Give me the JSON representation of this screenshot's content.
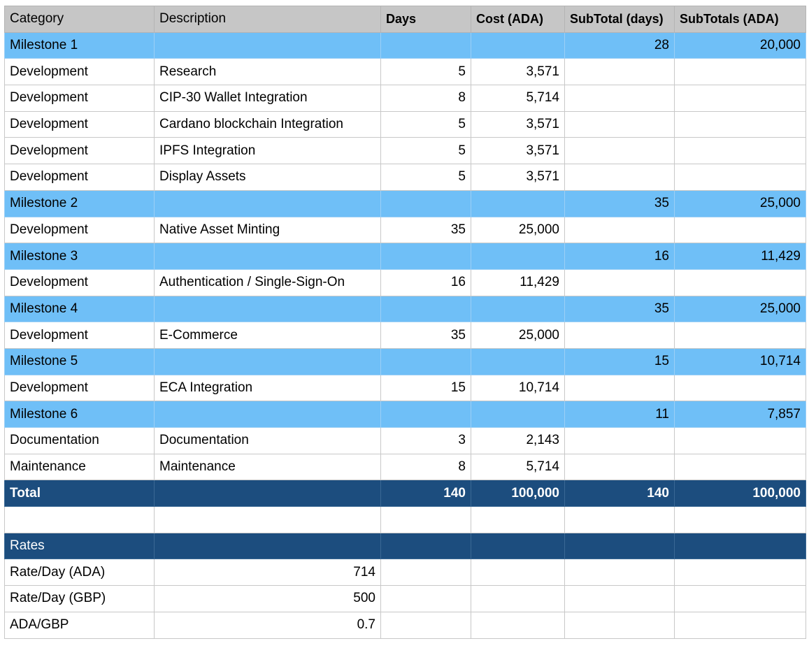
{
  "colors": {
    "header_bg": "#c6c6c6",
    "milestone_bg": "#6fbff7",
    "total_bg": "#1c4d7e",
    "grid": "#c8c8c8"
  },
  "headers": [
    "Category",
    "Description",
    "Days",
    "Cost (ADA)",
    "SubTotal (days)",
    "SubTotals (ADA)"
  ],
  "rows": [
    {
      "type": "milestone",
      "cells": [
        "Milestone 1",
        "",
        "",
        "",
        "28",
        "20,000"
      ]
    },
    {
      "type": "item",
      "cells": [
        "Development",
        "Research",
        "5",
        "3,571",
        "",
        ""
      ]
    },
    {
      "type": "item",
      "cells": [
        "Development",
        "CIP-30 Wallet Integration",
        "8",
        "5,714",
        "",
        ""
      ]
    },
    {
      "type": "item",
      "cells": [
        "Development",
        "Cardano blockchain Integration",
        "5",
        "3,571",
        "",
        ""
      ]
    },
    {
      "type": "item",
      "cells": [
        "Development",
        "IPFS Integration",
        "5",
        "3,571",
        "",
        ""
      ]
    },
    {
      "type": "item",
      "cells": [
        "Development",
        "Display Assets",
        "5",
        "3,571",
        "",
        ""
      ]
    },
    {
      "type": "milestone",
      "cells": [
        "Milestone 2",
        "",
        "",
        "",
        "35",
        "25,000"
      ]
    },
    {
      "type": "item",
      "cells": [
        "Development",
        "Native Asset Minting",
        "35",
        "25,000",
        "",
        ""
      ]
    },
    {
      "type": "milestone",
      "cells": [
        "Milestone 3",
        "",
        "",
        "",
        "16",
        "11,429"
      ]
    },
    {
      "type": "item",
      "cells": [
        "Development",
        "Authentication / Single-Sign-On",
        "16",
        "11,429",
        "",
        ""
      ]
    },
    {
      "type": "milestone",
      "cells": [
        "Milestone 4",
        "",
        "",
        "",
        "35",
        "25,000"
      ]
    },
    {
      "type": "item",
      "cells": [
        "Development",
        "E-Commerce",
        "35",
        "25,000",
        "",
        ""
      ]
    },
    {
      "type": "milestone",
      "cells": [
        "Milestone 5",
        "",
        "",
        "",
        "15",
        "10,714"
      ]
    },
    {
      "type": "item",
      "cells": [
        "Development",
        "ECA Integration",
        "15",
        "10,714",
        "",
        ""
      ]
    },
    {
      "type": "milestone",
      "cells": [
        "Milestone 6",
        "",
        "",
        "",
        "11",
        "7,857"
      ]
    },
    {
      "type": "item",
      "cells": [
        "Documentation",
        "Documentation",
        "3",
        "2,143",
        "",
        ""
      ]
    },
    {
      "type": "item",
      "cells": [
        "Maintenance",
        "Maintenance",
        "8",
        "5,714",
        "",
        ""
      ]
    },
    {
      "type": "total",
      "cells": [
        "Total",
        "",
        "140",
        "100,000",
        "140",
        "100,000"
      ]
    },
    {
      "type": "blank",
      "cells": [
        "",
        "",
        "",
        "",
        "",
        ""
      ]
    },
    {
      "type": "rates",
      "cells": [
        "Rates",
        "",
        "",
        "",
        "",
        ""
      ]
    },
    {
      "type": "rate",
      "cells": [
        "Rate/Day (ADA)",
        "714",
        "",
        "",
        "",
        ""
      ]
    },
    {
      "type": "rate",
      "cells": [
        "Rate/Day (GBP)",
        "500",
        "",
        "",
        "",
        ""
      ]
    },
    {
      "type": "rate",
      "cells": [
        "ADA/GBP",
        "0.7",
        "",
        "",
        "",
        ""
      ]
    }
  ]
}
